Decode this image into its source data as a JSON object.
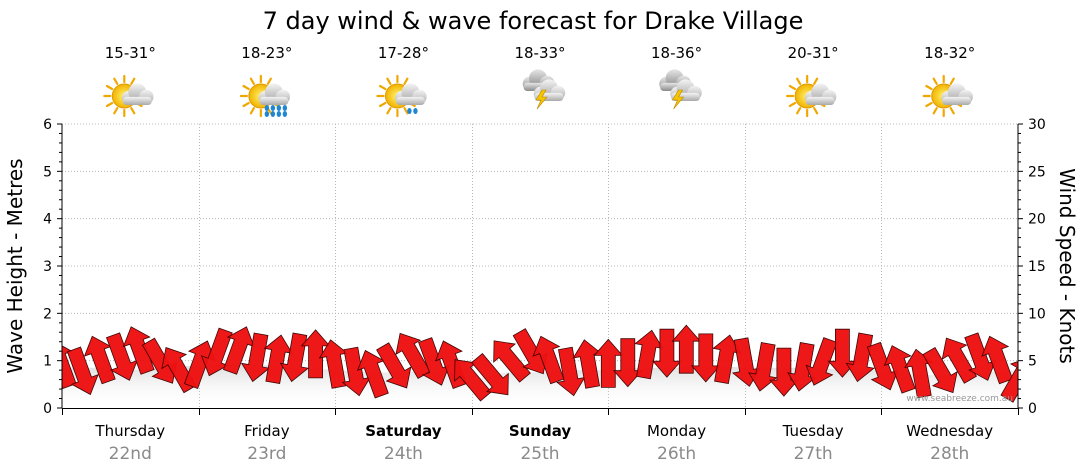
{
  "chart_data": {
    "type": "line",
    "title": "7 day wind & wave forecast for Drake Village",
    "ylabel_left": "Wave Height - Metres",
    "ylabel_right": "Wind Speed - Knots",
    "ylim_left": [
      0,
      6
    ],
    "ylim_right": [
      0,
      30
    ],
    "yticks_left": [
      "0",
      "1",
      "2",
      "3",
      "4",
      "5",
      "6"
    ],
    "yticks_right": [
      "0",
      "5",
      "10",
      "15",
      "20",
      "25",
      "30"
    ],
    "credit": "www.seabreeze.com.au",
    "days": [
      {
        "day": "Thursday",
        "date": "22nd",
        "temps": "15-31°",
        "icon": "partly-cloudy-icon",
        "bold": false
      },
      {
        "day": "Friday",
        "date": "23rd",
        "temps": "18-23°",
        "icon": "partly-cloudy-rain-icon",
        "bold": false
      },
      {
        "day": "Saturday",
        "date": "24th",
        "temps": "17-28°",
        "icon": "partly-cloudy-drizzle-icon",
        "bold": true
      },
      {
        "day": "Sunday",
        "date": "25th",
        "temps": "18-33°",
        "icon": "thunderstorm-icon",
        "bold": true
      },
      {
        "day": "Monday",
        "date": "26th",
        "temps": "18-36°",
        "icon": "thunderstorm-icon",
        "bold": false
      },
      {
        "day": "Tuesday",
        "date": "27th",
        "temps": "20-31°",
        "icon": "partly-cloudy-icon",
        "bold": false
      },
      {
        "day": "Wednesday",
        "date": "28th",
        "temps": "18-32°",
        "icon": "partly-cloudy-icon",
        "bold": false
      }
    ],
    "wave_series": {
      "name": "Wave Height (m)",
      "x_days": [
        0,
        0.25,
        0.5,
        0.75,
        1,
        1.25,
        1.5,
        1.75,
        2,
        2.25,
        2.5,
        2.75,
        3,
        3.25,
        3.5,
        3.75,
        4,
        4.25,
        4.5,
        4.75,
        5,
        5.25,
        5.5,
        5.75,
        6,
        6.25,
        6.5,
        6.75,
        7
      ],
      "values": [
        0.85,
        0.85,
        0.8,
        0.85,
        0.9,
        0.95,
        0.9,
        0.85,
        0.8,
        0.75,
        0.75,
        0.8,
        0.6,
        0.75,
        0.75,
        0.8,
        0.8,
        0.85,
        0.85,
        0.9,
        0.85,
        0.85,
        0.85,
        0.8,
        0.8,
        0.7,
        0.7,
        0.75,
        0.8
      ]
    },
    "wind_series": {
      "name": "Wind (knots)",
      "x_days": [
        0,
        0.143,
        0.286,
        0.429,
        0.571,
        0.714,
        0.857,
        1,
        1.143,
        1.286,
        1.429,
        1.571,
        1.714,
        1.857,
        2,
        2.143,
        2.286,
        2.429,
        2.571,
        2.714,
        2.857,
        3,
        3.143,
        3.286,
        3.429,
        3.571,
        3.714,
        3.857,
        4,
        4.143,
        4.286,
        4.429,
        4.571,
        4.714,
        4.857,
        5,
        5.143,
        5.286,
        5.429,
        5.571,
        5.714,
        5.857,
        6,
        6.143,
        6.286,
        6.429,
        6.571,
        6.714,
        6.857,
        7
      ],
      "speeds": [
        4.5,
        4,
        5,
        5.5,
        6,
        5,
        4,
        4.5,
        6,
        6,
        5.5,
        5,
        5.5,
        5.5,
        4.5,
        4,
        3.5,
        4.5,
        5.5,
        5,
        4.5,
        3,
        3.5,
        5,
        6,
        5,
        4,
        4.5,
        4.5,
        5,
        5.5,
        6,
        6,
        5.5,
        5,
        5,
        4.5,
        4,
        4.5,
        5,
        6,
        5.5,
        4.5,
        4,
        3.5,
        4,
        5,
        5.5,
        5,
        3
      ],
      "directions_deg": [
        250,
        70,
        250,
        70,
        250,
        60,
        240,
        290,
        110,
        290,
        100,
        280,
        100,
        270,
        260,
        80,
        250,
        60,
        240,
        70,
        250,
        230,
        50,
        230,
        60,
        250,
        80,
        260,
        270,
        90,
        280,
        90,
        270,
        90,
        280,
        80,
        100,
        90,
        100,
        110,
        90,
        100,
        70,
        250,
        260,
        60,
        240,
        70,
        250,
        300
      ]
    }
  }
}
